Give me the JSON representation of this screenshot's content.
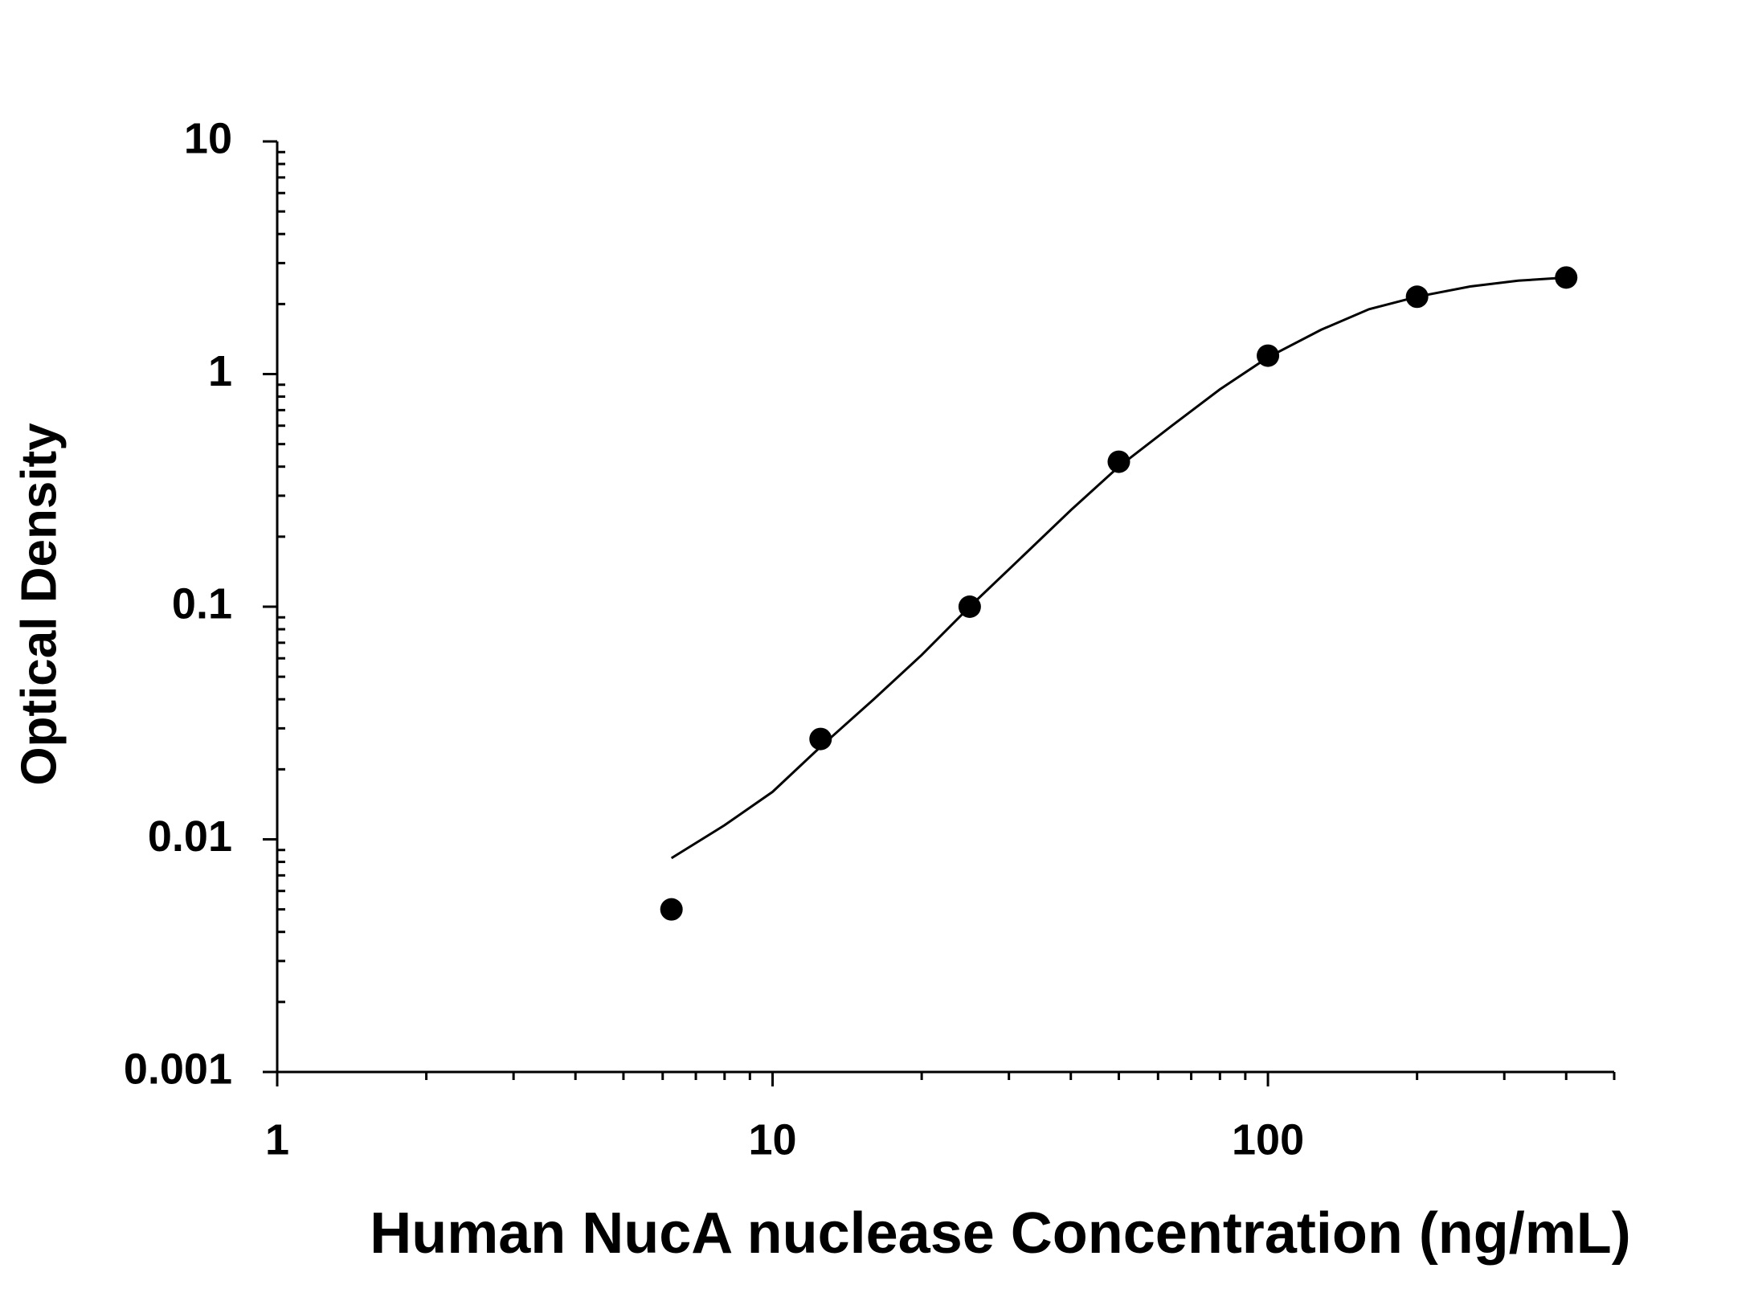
{
  "chart_data": {
    "type": "scatter",
    "xlabel": "Human NucA nuclease Concentration (ng/mL)",
    "ylabel": "Optical Density",
    "log_x": true,
    "log_y": true,
    "grid": false,
    "xlim": [
      1,
      500
    ],
    "ylim": [
      0.001,
      10
    ],
    "xticks": [
      1,
      10,
      100
    ],
    "yticks": [
      0.001,
      0.01,
      0.1,
      1,
      10
    ],
    "xminorticks": [
      2,
      3,
      4,
      5,
      6,
      7,
      8,
      9,
      20,
      30,
      40,
      50,
      60,
      70,
      80,
      90,
      200,
      300,
      400,
      500
    ],
    "yminorticks": [
      0.002,
      0.003,
      0.004,
      0.005,
      0.006,
      0.007,
      0.008,
      0.009,
      0.02,
      0.03,
      0.04,
      0.05,
      0.06,
      0.07,
      0.08,
      0.09,
      0.2,
      0.3,
      0.4,
      0.5,
      0.6,
      0.7,
      0.8,
      0.9,
      2,
      3,
      4,
      5,
      6,
      7,
      8,
      9
    ],
    "points": {
      "color": "#000000",
      "x": [
        6.25,
        12.5,
        25,
        50,
        100,
        200,
        400
      ],
      "values": [
        0.005,
        0.027,
        0.1,
        0.42,
        1.2,
        2.15,
        2.6
      ]
    },
    "fit": {
      "color": "#000000",
      "x": [
        6.25,
        8,
        10,
        12.5,
        16,
        20,
        25,
        32,
        40,
        50,
        64,
        80,
        100,
        128,
        160,
        200,
        256,
        320,
        400
      ],
      "values": [
        0.0083,
        0.0115,
        0.016,
        0.025,
        0.04,
        0.062,
        0.1,
        0.165,
        0.26,
        0.4,
        0.6,
        0.86,
        1.18,
        1.55,
        1.9,
        2.15,
        2.38,
        2.52,
        2.6
      ]
    }
  }
}
